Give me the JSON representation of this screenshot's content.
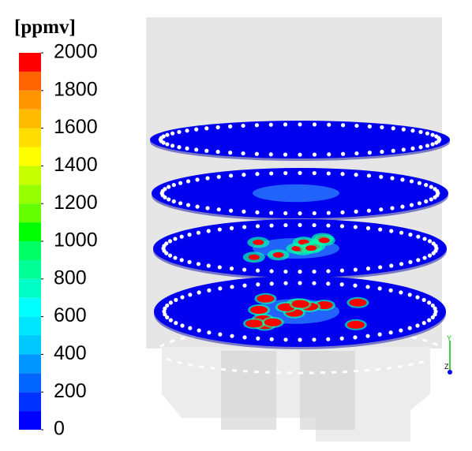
{
  "legend": {
    "unit": "[ppmv]",
    "range": [
      0,
      2000
    ],
    "ticks": [
      0,
      200,
      400,
      600,
      800,
      1000,
      1200,
      1400,
      1600,
      1800,
      2000
    ],
    "colors": [
      "#0000ff",
      "#0032ff",
      "#0064ff",
      "#0096ff",
      "#00c8ff",
      "#00e6ff",
      "#00ffff",
      "#00ffc8",
      "#00ff96",
      "#00ff64",
      "#00ff00",
      "#64ff00",
      "#96ff00",
      "#c8ff00",
      "#ffff00",
      "#ffdd00",
      "#ffbb00",
      "#ff9600",
      "#ff6400",
      "#ff0000"
    ]
  },
  "axes": {
    "labels": [
      "Y",
      "Z"
    ]
  }
}
